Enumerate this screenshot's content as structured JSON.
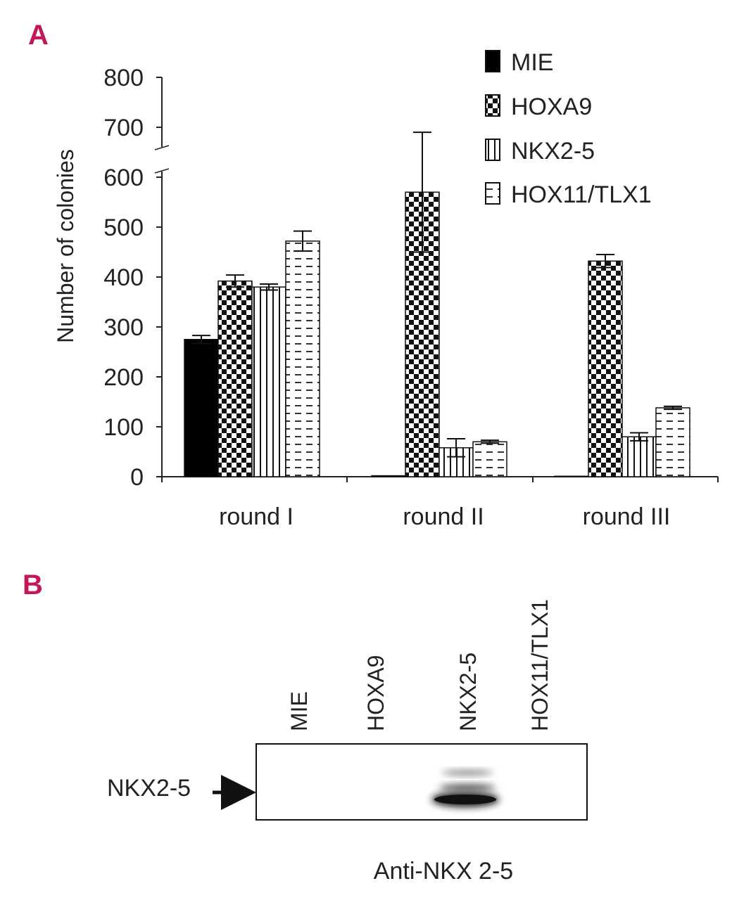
{
  "panel_a_letter": "A",
  "panel_b_letter": "B",
  "colors": {
    "panel_letter": "#c2185b",
    "ink": "#222222"
  },
  "chart_data": {
    "type": "bar",
    "title": "",
    "xlabel": "",
    "ylabel": "Number of colonies",
    "ylim": [
      0,
      800
    ],
    "axis_break": [
      600,
      700
    ],
    "yticks": [
      0,
      100,
      200,
      300,
      400,
      500,
      600,
      700,
      800
    ],
    "categories": [
      "round I",
      "round II",
      "round III"
    ],
    "legend_position": "top-right",
    "series": [
      {
        "name": "MIE",
        "pattern": "solid-black",
        "values": [
          275,
          2,
          1
        ],
        "errors": [
          8,
          0,
          0
        ]
      },
      {
        "name": "HOXA9",
        "pattern": "checkerboard",
        "values": [
          392,
          570,
          432
        ],
        "errors": [
          12,
          120,
          13
        ]
      },
      {
        "name": "NKX2-5",
        "pattern": "vertical-stripes",
        "values": [
          380,
          58,
          80
        ],
        "errors": [
          6,
          18,
          8
        ]
      },
      {
        "name": "HOX11/TLX1",
        "pattern": "horizontal-dashes",
        "values": [
          472,
          70,
          138
        ],
        "errors": [
          20,
          3,
          3
        ]
      }
    ]
  },
  "blot": {
    "lanes": [
      "MIE",
      "HOXA9",
      "NKX2-5",
      "HOX11/TLX1"
    ],
    "band_label": "NKX2-5",
    "antibody_label": "Anti-NKX 2-5",
    "band_lane": "NKX2-5"
  }
}
